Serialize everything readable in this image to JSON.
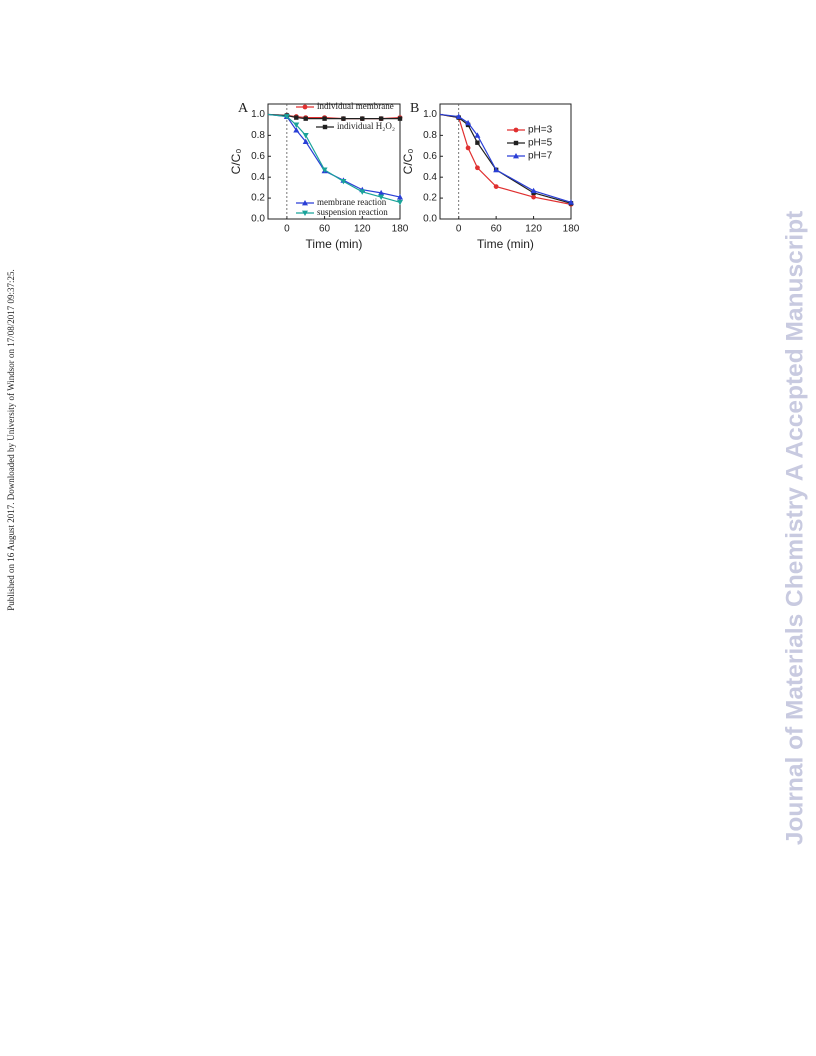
{
  "side_note": "Published on 16 August 2017. Downloaded by University of Windsor on 17/08/2017 09:37:25.",
  "watermark": "Journal of Materials Chemistry A Accepted Manuscript",
  "chart_data": [
    {
      "type": "line",
      "panel": "A",
      "x_label": "Time (min)",
      "y_label": "C/C₀",
      "x": [
        -30,
        0,
        15,
        30,
        60,
        90,
        120,
        150,
        180
      ],
      "xlim": [
        -30,
        180
      ],
      "xticks": [
        0,
        60,
        120,
        180
      ],
      "ylim": [
        0,
        1.1
      ],
      "yticks": [
        {
          "value": 0,
          "label": "0.0"
        },
        {
          "value": 0.2,
          "label": "0.2"
        },
        {
          "value": 0.4,
          "label": "0.4"
        },
        {
          "value": 0.6,
          "label": "0.6"
        },
        {
          "value": 0.8,
          "label": "0.8"
        },
        {
          "value": 1,
          "label": "1.0"
        }
      ],
      "vline": 0,
      "series": [
        {
          "name": "individual membrane",
          "color": "#e03030",
          "marker": "circle",
          "values": [
            1.0,
            0.99,
            0.98,
            0.97,
            0.97,
            0.96,
            0.96,
            0.96,
            0.97
          ]
        },
        {
          "name": "individual H₂O₂",
          "color": "#202020",
          "marker": "square",
          "values": [
            1.0,
            0.99,
            0.97,
            0.96,
            0.96,
            0.96,
            0.96,
            0.96,
            0.96
          ]
        },
        {
          "name": "membrane reaction",
          "color": "#2a3fd6",
          "marker": "triangle-up",
          "values": [
            1.0,
            0.98,
            0.85,
            0.74,
            0.46,
            0.37,
            0.28,
            0.25,
            0.21
          ]
        },
        {
          "name": "suspension reaction",
          "color": "#1aa39a",
          "marker": "triangle-down",
          "values": [
            1.0,
            0.98,
            0.9,
            0.8,
            0.47,
            0.36,
            0.26,
            0.21,
            0.16
          ]
        }
      ]
    },
    {
      "type": "line",
      "panel": "B",
      "x_label": "Time (min)",
      "y_label": "C/C₀",
      "x": [
        -30,
        0,
        15,
        30,
        60,
        120,
        180
      ],
      "xlim": [
        -30,
        180
      ],
      "xticks": [
        0,
        60,
        120,
        180
      ],
      "ylim": [
        0,
        1.1
      ],
      "yticks": [
        {
          "value": 0,
          "label": "0.0"
        },
        {
          "value": 0.2,
          "label": "0.2"
        },
        {
          "value": 0.4,
          "label": "0.4"
        },
        {
          "value": 0.6,
          "label": "0.6"
        },
        {
          "value": 0.8,
          "label": "0.8"
        },
        {
          "value": 1,
          "label": "1.0"
        }
      ],
      "vline": 0,
      "series": [
        {
          "name": "pH=3",
          "color": "#e03030",
          "marker": "circle",
          "values": [
            1.0,
            0.97,
            0.68,
            0.49,
            0.31,
            0.21,
            0.14
          ]
        },
        {
          "name": "pH=5",
          "color": "#202020",
          "marker": "square",
          "values": [
            1.0,
            0.97,
            0.9,
            0.73,
            0.47,
            0.25,
            0.15
          ]
        },
        {
          "name": "pH=7",
          "color": "#2a3fd6",
          "marker": "triangle-up",
          "values": [
            1.0,
            0.98,
            0.92,
            0.8,
            0.47,
            0.27,
            0.16
          ]
        }
      ]
    }
  ]
}
